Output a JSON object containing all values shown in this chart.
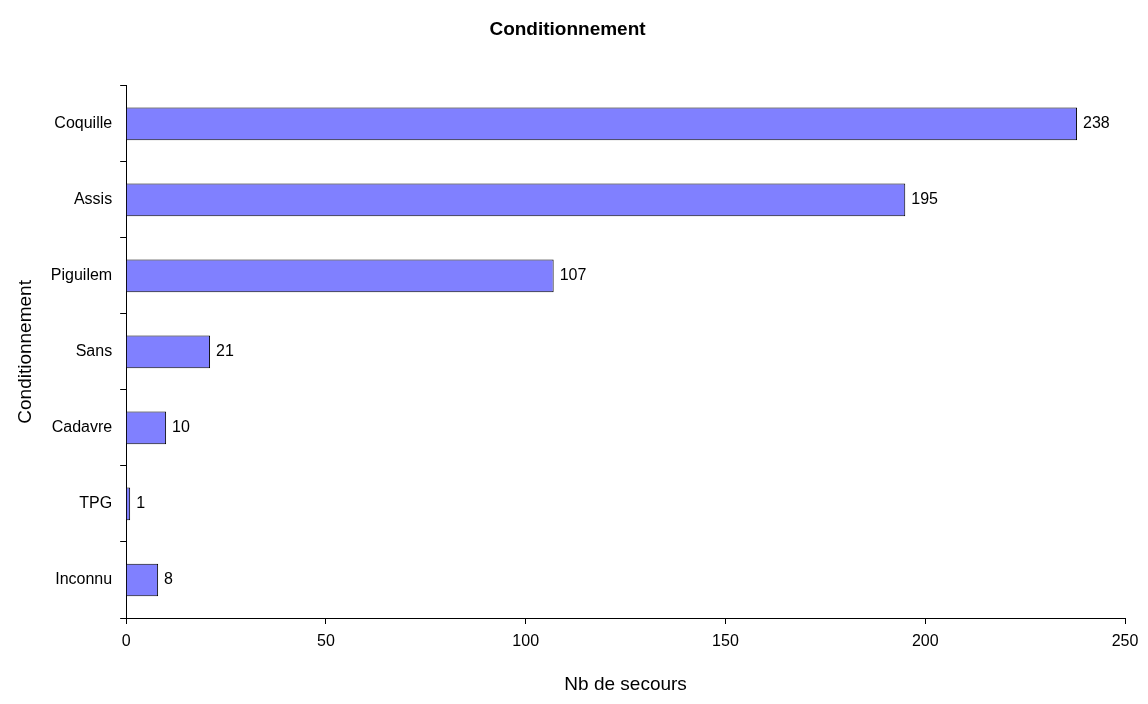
{
  "chart_data": {
    "type": "bar",
    "orientation": "horizontal",
    "title": "Conditionnement",
    "xlabel": "Nb de secours",
    "ylabel": "Conditionnement",
    "categories": [
      "Coquille",
      "Assis",
      "Piguilem",
      "Sans",
      "Cadavre",
      "TPG",
      "Inconnu"
    ],
    "values": [
      238,
      195,
      107,
      21,
      10,
      1,
      8
    ],
    "color": "#8080ff",
    "xlim": [
      0,
      250
    ],
    "xticks": [
      0,
      50,
      100,
      150,
      200,
      250
    ],
    "grid": false,
    "legend": false,
    "data_labels": true
  }
}
